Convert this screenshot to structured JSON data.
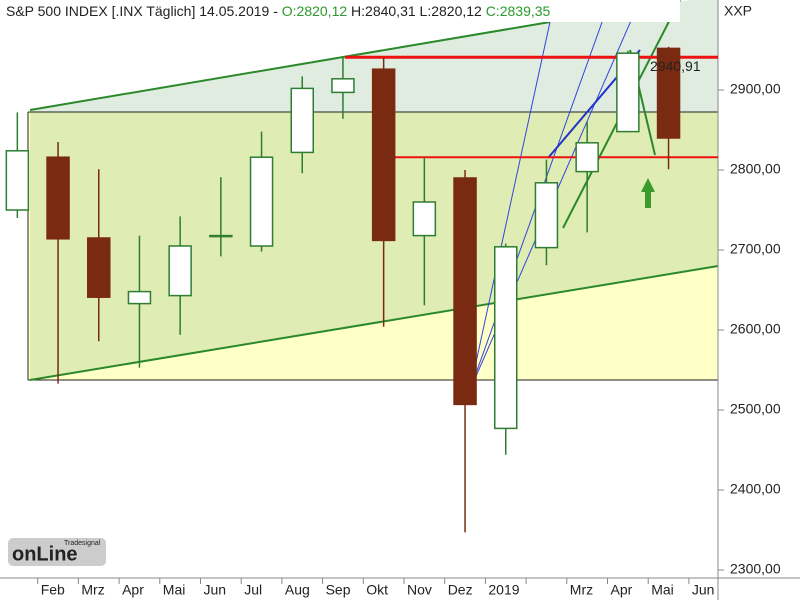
{
  "chart_data": {
    "type": "candlestick",
    "title": "S&P 500 INDEX [.INX  Täglich] 14.05.2019 -",
    "quote": {
      "open": "O:2820,12",
      "high": "H:2840,31",
      "low": "L:2820,12",
      "close": "C:2839,35"
    },
    "symbol": "XXP",
    "logo": {
      "small": "Tradesignal",
      "main": "onLine"
    },
    "categories": [
      null,
      "Feb",
      "Mrz",
      "Apr",
      "Mai",
      "Jun",
      "Jul",
      "Aug",
      "Sep",
      "Okt",
      "Nov",
      "Dez",
      "2019",
      null,
      "Mrz",
      "Apr",
      "Mai",
      "Jun"
    ],
    "open": [
      2750,
      2816,
      2715,
      2633,
      2643,
      2718,
      2705,
      2822,
      2897,
      2926,
      2718,
      2790,
      2477,
      2703,
      2798,
      2848,
      2952,
      null
    ],
    "high": [
      2872,
      2835,
      2801,
      2718,
      2742,
      2791,
      2848,
      2917,
      2941,
      2940,
      2816,
      2800,
      2708,
      2813,
      2860,
      2949,
      2954,
      null
    ],
    "low": [
      2740,
      2533,
      2586,
      2553,
      2594,
      2692,
      2698,
      2796,
      2864,
      2604,
      2631,
      2347,
      2444,
      2681,
      2722,
      2848,
      2801,
      null
    ],
    "close": [
      2824,
      2714,
      2641,
      2648,
      2705,
      2718,
      2816,
      2902,
      2914,
      2712,
      2760,
      2507,
      2704,
      2784,
      2834,
      2946,
      2840,
      null
    ],
    "up_color": "#2e7d32",
    "down_color": "#7a2a10",
    "level_color": "#ee1111",
    "levels": [
      {
        "value": 2940.91,
        "label": "2940,91"
      },
      2816
    ],
    "ylim": [
      2290,
      3012.5
    ],
    "yticks": [
      {
        "value": 2300,
        "label": "2300,00"
      },
      {
        "value": 2400,
        "label": "2400,00"
      },
      {
        "value": 2500,
        "label": "2500,00"
      },
      {
        "value": 2600,
        "label": "2600,00"
      },
      {
        "value": 2700,
        "label": "2700,00"
      },
      {
        "value": 2800,
        "label": "2800,00"
      },
      {
        "value": 2900,
        "label": "2900,00"
      }
    ]
  }
}
